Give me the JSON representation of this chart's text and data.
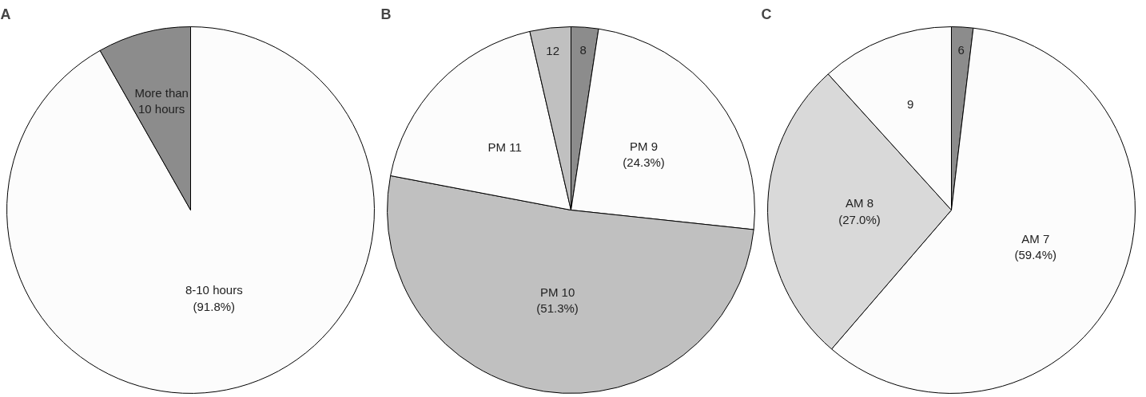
{
  "chart_data": [
    {
      "type": "pie",
      "title": "A",
      "categories": [
        "8-10 hours",
        "More than 10 hours"
      ],
      "values": [
        91.8,
        8.2
      ],
      "colors": [
        "#fcfcfc",
        "#8c8c8c"
      ],
      "value_labels": [
        "(91.8%)",
        null
      ]
    },
    {
      "type": "pie",
      "title": "B",
      "categories": [
        "8",
        "PM 9",
        "PM 10",
        "PM 11",
        "12"
      ],
      "values": [
        2.4,
        24.3,
        51.3,
        18.4,
        3.6
      ],
      "colors": [
        "#8c8c8c",
        "#fcfcfc",
        "#c0c0c0",
        "#fcfcfc",
        "#c0c0c0"
      ],
      "value_labels": [
        null,
        "(24.3%)",
        "(51.3%)",
        null,
        null
      ]
    },
    {
      "type": "pie",
      "title": "C",
      "categories": [
        "6",
        "AM 7",
        "AM 8",
        "9"
      ],
      "values": [
        1.9,
        59.4,
        27.0,
        11.7
      ],
      "colors": [
        "#8c8c8c",
        "#fcfcfc",
        "#d9d9d9",
        "#fcfcfc"
      ],
      "value_labels": [
        null,
        "(59.4%)",
        "(27.0%)",
        null
      ]
    }
  ]
}
